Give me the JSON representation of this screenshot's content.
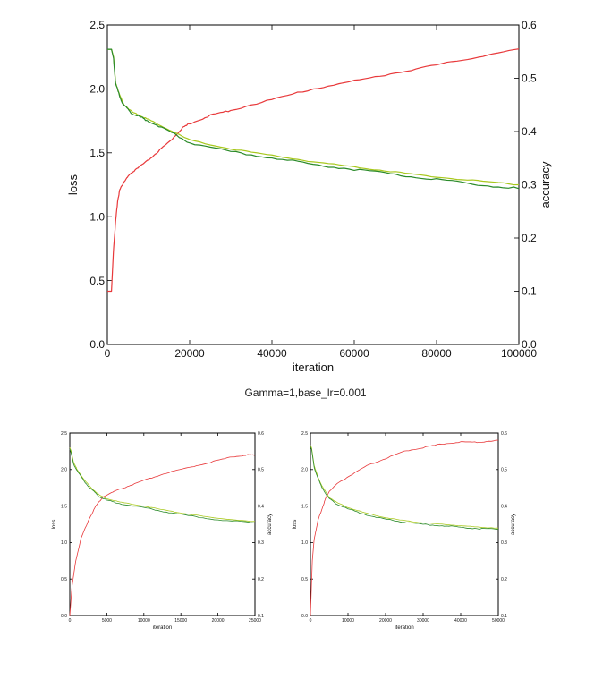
{
  "caption": "Gamma=1,base_lr=0.001",
  "colors": {
    "accuracy": "#e8383a",
    "train_loss": "#a8c81c",
    "test_loss": "#2a8a2a",
    "axis": "#000000"
  },
  "chart_data": [
    {
      "type": "line",
      "id": "main",
      "xlabel": "iteration",
      "ylabel": "loss",
      "y2label": "accuracy",
      "xlim": [
        0,
        100000
      ],
      "ylim": [
        0,
        2.5
      ],
      "y2lim": [
        0,
        0.6
      ],
      "xticks": [
        0,
        20000,
        40000,
        60000,
        80000,
        100000
      ],
      "yticks": [
        0.0,
        0.5,
        1.0,
        1.5,
        2.0,
        2.5
      ],
      "y2ticks": [
        0.0,
        0.1,
        0.2,
        0.3,
        0.4,
        0.5,
        0.6
      ],
      "grid": false,
      "series": [
        {
          "axis": "y2",
          "color_key": "accuracy",
          "x": [
            0,
            1000,
            1500,
            2000,
            2500,
            3000,
            4000,
            5000,
            7000,
            9000,
            12000,
            15000,
            18000,
            20000,
            25000,
            30000,
            40000,
            50000,
            60000,
            70000,
            80000,
            90000,
            100000
          ],
          "y": [
            0.1,
            0.1,
            0.18,
            0.23,
            0.27,
            0.29,
            0.305,
            0.315,
            0.33,
            0.34,
            0.36,
            0.38,
            0.405,
            0.415,
            0.43,
            0.44,
            0.46,
            0.48,
            0.495,
            0.51,
            0.525,
            0.54,
            0.555
          ]
        },
        {
          "axis": "y",
          "color_key": "train_loss",
          "x": [
            0,
            1000,
            1500,
            2000,
            3000,
            4000,
            6000,
            8000,
            10000,
            15000,
            20000,
            30000,
            40000,
            50000,
            60000,
            70000,
            80000,
            90000,
            100000
          ],
          "y": [
            2.31,
            2.31,
            2.25,
            2.05,
            1.95,
            1.88,
            1.82,
            1.79,
            1.76,
            1.68,
            1.6,
            1.53,
            1.48,
            1.43,
            1.39,
            1.35,
            1.31,
            1.28,
            1.25
          ]
        },
        {
          "axis": "y",
          "color_key": "test_loss",
          "x": [
            0,
            1000,
            1500,
            2000,
            3000,
            4000,
            6000,
            8000,
            10000,
            15000,
            20000,
            30000,
            40000,
            50000,
            60000,
            70000,
            80000,
            90000,
            100000
          ],
          "y": [
            2.31,
            2.31,
            2.24,
            2.04,
            1.94,
            1.87,
            1.81,
            1.78,
            1.75,
            1.67,
            1.58,
            1.51,
            1.46,
            1.41,
            1.37,
            1.33,
            1.29,
            1.25,
            1.22
          ]
        }
      ]
    },
    {
      "type": "line",
      "id": "small_left",
      "xlabel": "iteration",
      "ylabel": "loss",
      "y2label": "accuracy",
      "xlim": [
        0,
        25000
      ],
      "ylim": [
        0,
        2.5
      ],
      "y2lim": [
        0.1,
        0.6
      ],
      "xticks": [
        0,
        5000,
        10000,
        15000,
        20000,
        25000
      ],
      "yticks": [
        0.0,
        0.5,
        1.0,
        1.5,
        2.0,
        2.5
      ],
      "y2ticks": [
        0.1,
        0.2,
        0.3,
        0.4,
        0.5,
        0.6
      ],
      "grid": false,
      "series": [
        {
          "axis": "y2",
          "color_key": "accuracy",
          "x": [
            0,
            300,
            800,
            1500,
            2500,
            3500,
            4500,
            6000,
            8000,
            10000,
            13000,
            16000,
            19000,
            22000,
            24000,
            25000
          ],
          "y": [
            0.1,
            0.18,
            0.25,
            0.31,
            0.36,
            0.4,
            0.425,
            0.44,
            0.455,
            0.47,
            0.49,
            0.505,
            0.52,
            0.535,
            0.54,
            0.54
          ]
        },
        {
          "axis": "y",
          "color_key": "train_loss",
          "x": [
            0,
            200,
            500,
            1000,
            2000,
            3000,
            4000,
            5000,
            7000,
            10000,
            13000,
            16000,
            20000,
            25000
          ],
          "y": [
            2.3,
            2.25,
            2.1,
            2.0,
            1.85,
            1.74,
            1.65,
            1.6,
            1.55,
            1.5,
            1.44,
            1.39,
            1.33,
            1.29
          ]
        },
        {
          "axis": "y",
          "color_key": "test_loss",
          "x": [
            0,
            200,
            500,
            1000,
            2000,
            3000,
            4000,
            5000,
            7000,
            10000,
            13000,
            16000,
            20000,
            25000
          ],
          "y": [
            2.28,
            2.22,
            2.08,
            1.98,
            1.83,
            1.72,
            1.63,
            1.58,
            1.53,
            1.48,
            1.42,
            1.37,
            1.31,
            1.27
          ]
        }
      ]
    },
    {
      "type": "line",
      "id": "small_right",
      "xlabel": "iteration",
      "ylabel": "loss",
      "y2label": "accuracy",
      "xlim": [
        0,
        50000
      ],
      "ylim": [
        0,
        2.5
      ],
      "y2lim": [
        0.1,
        0.6
      ],
      "xticks": [
        0,
        10000,
        20000,
        30000,
        40000,
        50000
      ],
      "yticks": [
        0.0,
        0.5,
        1.0,
        1.5,
        2.0,
        2.5
      ],
      "y2ticks": [
        0.1,
        0.2,
        0.3,
        0.4,
        0.5,
        0.6
      ],
      "grid": false,
      "series": [
        {
          "axis": "y2",
          "color_key": "accuracy",
          "x": [
            0,
            500,
            1000,
            2000,
            3000,
            4000,
            5000,
            7000,
            10000,
            15000,
            20000,
            25000,
            30000,
            35000,
            40000,
            45000,
            50000
          ],
          "y": [
            0.1,
            0.25,
            0.31,
            0.36,
            0.39,
            0.42,
            0.44,
            0.46,
            0.48,
            0.51,
            0.53,
            0.55,
            0.56,
            0.57,
            0.575,
            0.575,
            0.58
          ]
        },
        {
          "axis": "y",
          "color_key": "train_loss",
          "x": [
            0,
            300,
            1000,
            2000,
            3000,
            5000,
            7000,
            10000,
            15000,
            20000,
            25000,
            30000,
            35000,
            40000,
            45000,
            50000
          ],
          "y": [
            2.33,
            2.3,
            2.05,
            1.9,
            1.78,
            1.62,
            1.55,
            1.48,
            1.4,
            1.34,
            1.3,
            1.27,
            1.25,
            1.23,
            1.21,
            1.2
          ]
        },
        {
          "axis": "y",
          "color_key": "test_loss",
          "x": [
            0,
            300,
            1000,
            2000,
            3000,
            5000,
            7000,
            10000,
            15000,
            20000,
            25000,
            30000,
            35000,
            40000,
            45000,
            50000
          ],
          "y": [
            2.31,
            2.28,
            2.03,
            1.88,
            1.76,
            1.6,
            1.53,
            1.46,
            1.38,
            1.32,
            1.28,
            1.25,
            1.23,
            1.21,
            1.19,
            1.18
          ]
        }
      ]
    }
  ]
}
